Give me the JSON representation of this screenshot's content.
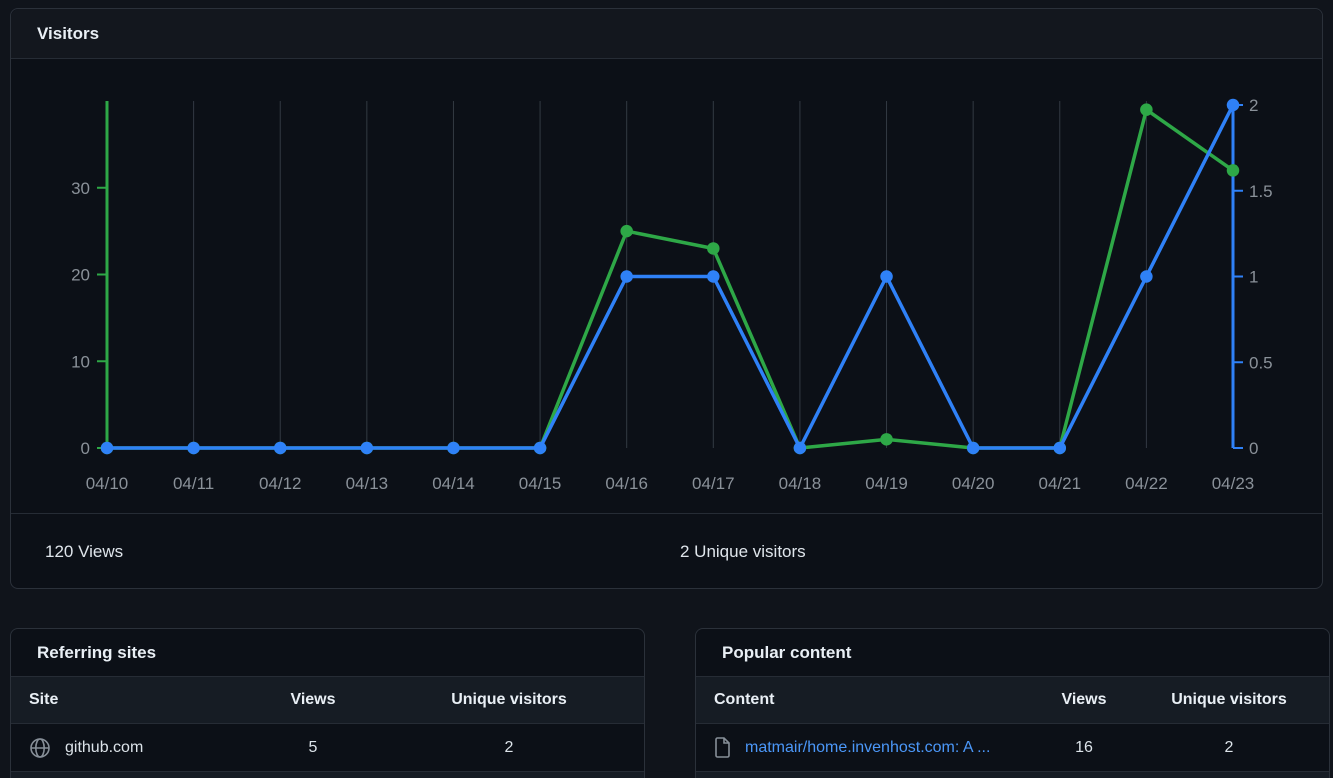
{
  "visitors": {
    "title": "Visitors",
    "stats": {
      "views_total": "120 Views",
      "unique_total": "2 Unique visitors"
    }
  },
  "chart_data": {
    "type": "line",
    "title": "Visitors",
    "x": [
      "04/10",
      "04/11",
      "04/12",
      "04/13",
      "04/14",
      "04/15",
      "04/16",
      "04/17",
      "04/18",
      "04/19",
      "04/20",
      "04/21",
      "04/22",
      "04/23"
    ],
    "series": [
      {
        "name": "Views",
        "axis": "left",
        "color": "#2ea847",
        "values": [
          0,
          0,
          0,
          0,
          0,
          0,
          25,
          23,
          0,
          1,
          0,
          0,
          39,
          32
        ]
      },
      {
        "name": "Unique visitors",
        "axis": "right",
        "color": "#2f81f7",
        "values": [
          0,
          0,
          0,
          0,
          0,
          0,
          1,
          1,
          0,
          1,
          0,
          0,
          1,
          2
        ]
      }
    ],
    "left_axis": {
      "ticks": [
        0,
        10,
        20,
        30
      ],
      "max": 40,
      "color": "#2ea847",
      "label_color": "#8a9199"
    },
    "right_axis": {
      "ticks": [
        0,
        0.5,
        1,
        1.5,
        2
      ],
      "max": 2,
      "color": "#2f81f7",
      "label_color": "#8a9199"
    },
    "grid": "vertical-only",
    "legend": "none"
  },
  "referring_sites": {
    "title": "Referring sites",
    "columns": [
      "Site",
      "Views",
      "Unique visitors"
    ],
    "rows": [
      {
        "icon": "globe-icon",
        "site": "github.com",
        "views": "5",
        "unique": "2"
      }
    ]
  },
  "popular_content": {
    "title": "Popular content",
    "columns": [
      "Content",
      "Views",
      "Unique visitors"
    ],
    "rows": [
      {
        "icon": "file-icon",
        "content": "matmair/home.invenhost.com: A ...",
        "views": "16",
        "unique": "2"
      }
    ]
  },
  "colors": {
    "views_green": "#2ea847",
    "unique_blue": "#2f81f7",
    "link_blue": "#4b97f8",
    "grid_line": "#333a43",
    "tick_label": "#8a9199"
  }
}
